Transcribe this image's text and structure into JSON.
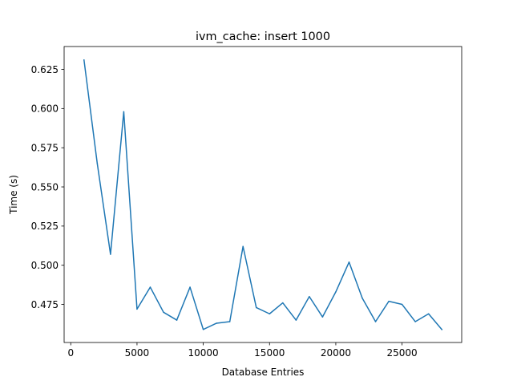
{
  "chart_data": {
    "type": "line",
    "title": "ivm_cache: insert 1000",
    "xlabel": "Database Entries",
    "ylabel": "Time (s)",
    "xlim": [
      -500,
      29500
    ],
    "ylim": [
      0.4507,
      0.6396
    ],
    "xticks": [
      0,
      5000,
      10000,
      15000,
      20000,
      25000
    ],
    "xtick_labels": [
      "0",
      "5000",
      "10000",
      "15000",
      "20000",
      "25000"
    ],
    "yticks": [
      0.475,
      0.5,
      0.525,
      0.55,
      0.575,
      0.6,
      0.625
    ],
    "ytick_labels": [
      "0.475",
      "0.500",
      "0.525",
      "0.550",
      "0.575",
      "0.600",
      "0.625"
    ],
    "grid": false,
    "series": [
      {
        "color": "#1f77b4",
        "x": [
          1000,
          2000,
          3000,
          4000,
          5000,
          6000,
          7000,
          8000,
          9000,
          10000,
          11000,
          12000,
          13000,
          14000,
          15000,
          16000,
          17000,
          18000,
          19000,
          20000,
          21000,
          22000,
          23000,
          24000,
          25000,
          26000,
          27000,
          28000
        ],
        "values": [
          0.631,
          0.565,
          0.507,
          0.598,
          0.472,
          0.486,
          0.47,
          0.465,
          0.486,
          0.459,
          0.463,
          0.464,
          0.512,
          0.473,
          0.469,
          0.476,
          0.465,
          0.48,
          0.467,
          0.483,
          0.502,
          0.479,
          0.464,
          0.477,
          0.475,
          0.464,
          0.469,
          0.459
        ]
      }
    ]
  }
}
